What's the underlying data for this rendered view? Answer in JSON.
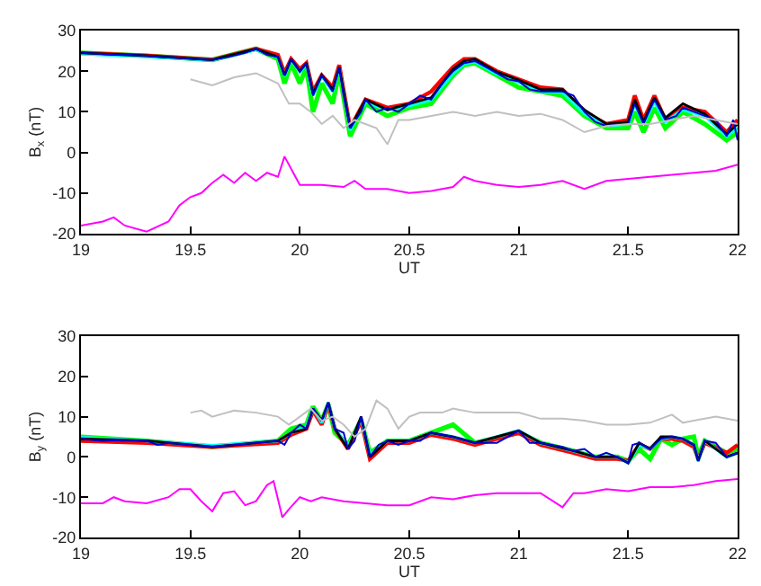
{
  "chart_data": [
    {
      "type": "line",
      "xlabel": "UT",
      "ylabel": "B$_{x}$ (nT)",
      "xlim": [
        19,
        22
      ],
      "xticks": [
        19,
        19.5,
        20,
        20.5,
        21,
        21.5,
        22
      ],
      "ylim": [
        -20,
        30
      ],
      "yticks": [
        -20,
        -10,
        0,
        10,
        20,
        30
      ],
      "grid": false,
      "marker": "none",
      "line_style": "solid",
      "series": [
        {
          "color": "#00ff00",
          "x": [
            19,
            19.3,
            19.6,
            19.8,
            19.9,
            19.93,
            19.96,
            20,
            20.03,
            20.06,
            20.1,
            20.15,
            20.18,
            20.23,
            20.3,
            20.4,
            20.5,
            20.6,
            20.7,
            20.75,
            20.8,
            20.9,
            21,
            21.1,
            21.2,
            21.3,
            21.4,
            21.5,
            21.53,
            21.57,
            21.62,
            21.67,
            21.75,
            21.85,
            21.95,
            22
          ],
          "values": [
            24.5,
            23.8,
            22.8,
            25.5,
            23,
            17,
            22,
            17,
            21,
            10,
            17,
            12,
            20,
            4,
            12,
            9,
            11,
            12,
            19,
            21.5,
            22,
            19,
            16,
            15,
            14,
            9,
            6,
            6,
            10,
            5,
            11,
            6,
            10,
            7,
            3,
            5
          ]
        },
        {
          "color": "#ff0000",
          "x": [
            19,
            19.3,
            19.6,
            19.8,
            19.9,
            19.93,
            19.96,
            20,
            20.03,
            20.06,
            20.1,
            20.15,
            20.18,
            20.23,
            20.3,
            20.4,
            20.5,
            20.6,
            20.7,
            20.75,
            20.8,
            20.9,
            21,
            21.1,
            21.2,
            21.3,
            21.4,
            21.5,
            21.53,
            21.57,
            21.62,
            21.67,
            21.75,
            21.85,
            21.95,
            22
          ],
          "values": [
            24.5,
            23.8,
            22.8,
            25.5,
            24,
            19.5,
            23,
            20.5,
            22,
            15,
            19,
            16,
            21.5,
            6,
            13,
            11,
            12,
            15,
            21,
            23,
            23,
            20,
            18,
            16,
            15.5,
            10,
            7,
            8,
            14,
            8,
            14,
            8,
            11,
            10,
            5,
            8
          ]
        },
        {
          "color": "#00ffff",
          "x": [
            19,
            19.3,
            19.6,
            19.8,
            19.9,
            19.93,
            19.96,
            20,
            20.03,
            20.06,
            20.1,
            20.15,
            20.18,
            20.23,
            20.3,
            20.4,
            20.5,
            20.6,
            20.7,
            20.75,
            20.8,
            20.9,
            21,
            21.1,
            21.2,
            21.3,
            21.4,
            21.5,
            21.53,
            21.57,
            21.62,
            21.67,
            21.75,
            21.85,
            21.95,
            22
          ],
          "values": [
            24.3,
            23.6,
            22.7,
            25.3,
            23.4,
            18.8,
            22.8,
            19.8,
            21.8,
            14,
            18.8,
            15,
            20.8,
            5.5,
            12.5,
            10.5,
            11.5,
            13,
            19.5,
            21.8,
            22.3,
            19.3,
            17.3,
            15,
            14.8,
            9.5,
            6.5,
            7,
            12,
            7,
            12.5,
            7.5,
            10.5,
            9,
            4,
            6
          ]
        },
        {
          "color": "#000000",
          "x": [
            19,
            19.3,
            19.6,
            19.8,
            19.9,
            19.93,
            19.96,
            20,
            20.03,
            20.06,
            20.1,
            20.15,
            20.18,
            20.23,
            20.3,
            20.4,
            20.5,
            20.6,
            20.7,
            20.75,
            20.8,
            20.9,
            21,
            21.1,
            21.2,
            21.3,
            21.4,
            21.5,
            21.53,
            21.57,
            21.62,
            21.67,
            21.75,
            21.85,
            21.95,
            22
          ],
          "values": [
            24.5,
            23.8,
            22.8,
            25.5,
            23.5,
            19,
            23,
            20,
            22,
            14.5,
            19,
            15.5,
            21,
            6,
            13,
            10.5,
            12,
            13.5,
            20.5,
            22.5,
            23,
            19.8,
            17.8,
            15.5,
            15.5,
            10.5,
            7,
            7.5,
            13,
            7.5,
            13.5,
            8.5,
            12,
            9.5,
            4.5,
            7
          ]
        },
        {
          "color": "#0000cc",
          "x": [
            19,
            19.075,
            19.15,
            19.225,
            19.3,
            19.375,
            19.45,
            19.525,
            19.6,
            19.675,
            19.75,
            19.8,
            19.85,
            19.9,
            19.93,
            19.96,
            20,
            20.03,
            20.06,
            20.1,
            20.15,
            20.18,
            20.2,
            20.23,
            20.28,
            20.3,
            20.35,
            20.4,
            20.45,
            20.5,
            20.55,
            20.6,
            20.65,
            20.7,
            20.75,
            20.8,
            20.85,
            20.9,
            20.95,
            21,
            21.05,
            21.1,
            21.2,
            21.25,
            21.3,
            21.35,
            21.4,
            21.45,
            21.5,
            21.53,
            21.57,
            21.62,
            21.67,
            21.72,
            21.75,
            21.8,
            21.85,
            21.9,
            21.95,
            21.98,
            22
          ],
          "values": [
            24.5,
            24.3,
            24,
            24,
            23.8,
            23.5,
            23.3,
            23,
            22.8,
            23.5,
            24.5,
            25.5,
            24,
            23.5,
            19,
            23,
            20,
            22,
            14,
            19,
            15,
            21,
            14,
            6,
            10,
            13,
            10,
            11,
            10,
            12,
            14,
            13,
            17,
            20,
            22,
            22.5,
            21,
            19.5,
            18,
            17.5,
            15.5,
            15,
            15,
            14,
            10,
            7.5,
            6.5,
            7,
            7,
            12,
            7,
            13,
            8,
            9,
            11,
            10,
            9,
            8,
            4,
            8,
            3
          ]
        },
        {
          "color": "#c0c0c0",
          "x": [
            19.5,
            19.6,
            19.7,
            19.8,
            19.9,
            19.95,
            20,
            20.05,
            20.1,
            20.15,
            20.2,
            20.25,
            20.3,
            20.35,
            20.4,
            20.45,
            20.5,
            20.6,
            20.7,
            20.8,
            20.9,
            21,
            21.1,
            21.2,
            21.3,
            21.4,
            21.5,
            21.6,
            21.7,
            21.8,
            21.9,
            22
          ],
          "values": [
            18,
            16.5,
            18.5,
            19.5,
            17,
            12,
            12,
            10,
            7,
            9,
            6,
            8,
            7,
            6,
            2,
            8,
            8,
            9,
            10,
            9,
            10,
            9,
            9.5,
            8,
            5,
            6.5,
            7,
            7,
            8,
            9,
            8,
            7
          ]
        },
        {
          "color": "#ff00ff",
          "x": [
            19,
            19.1,
            19.15,
            19.2,
            19.3,
            19.4,
            19.45,
            19.5,
            19.55,
            19.6,
            19.65,
            19.7,
            19.75,
            19.8,
            19.85,
            19.9,
            19.93,
            19.97,
            20,
            20.1,
            20.2,
            20.25,
            20.3,
            20.4,
            20.5,
            20.6,
            20.7,
            20.75,
            20.8,
            20.9,
            21,
            21.1,
            21.2,
            21.3,
            21.4,
            21.5,
            21.6,
            21.7,
            21.8,
            21.9,
            22
          ],
          "values": [
            -18,
            -17,
            -16,
            -18,
            -19.5,
            -17,
            -13,
            -11,
            -10,
            -7.5,
            -5.5,
            -7.5,
            -5,
            -7,
            -5,
            -6,
            -1,
            -5,
            -8,
            -8,
            -8.5,
            -7,
            -9,
            -9,
            -10,
            -9.5,
            -8.5,
            -6,
            -7,
            -8,
            -8.5,
            -8,
            -7,
            -9,
            -7,
            -6.5,
            -6,
            -5.5,
            -5,
            -4.5,
            -3
          ]
        }
      ]
    },
    {
      "type": "line",
      "xlabel": "UT",
      "ylabel": "B$_{y}$ (nT)",
      "xlim": [
        19,
        22
      ],
      "xticks": [
        19,
        19.5,
        20,
        20.5,
        21,
        21.5,
        22
      ],
      "ylim": [
        -20,
        30
      ],
      "yticks": [
        -20,
        -10,
        0,
        10,
        20,
        30
      ],
      "grid": false,
      "marker": "none",
      "line_style": "solid",
      "series": [
        {
          "color": "#00ff00",
          "x": [
            19,
            19.3,
            19.6,
            19.9,
            19.96,
            20.03,
            20.06,
            20.1,
            20.13,
            20.16,
            20.22,
            20.28,
            20.32,
            20.4,
            20.5,
            20.6,
            20.7,
            20.8,
            21,
            21.1,
            21.25,
            21.35,
            21.45,
            21.5,
            21.55,
            21.6,
            21.65,
            21.7,
            21.75,
            21.8,
            21.82,
            21.85,
            21.95,
            22
          ],
          "values": [
            5,
            4,
            2.5,
            4,
            7,
            8,
            12.5,
            9,
            13,
            6,
            3,
            9,
            1,
            4,
            4,
            6,
            8,
            3.5,
            6,
            3.5,
            1.5,
            0,
            0,
            -1,
            2,
            -0.5,
            4.5,
            3,
            4.5,
            5,
            0,
            4,
            1,
            2
          ]
        },
        {
          "color": "#ff0000",
          "x": [
            19,
            19.3,
            19.6,
            19.9,
            19.96,
            20.03,
            20.06,
            20.1,
            20.13,
            20.16,
            20.22,
            20.28,
            20.32,
            20.4,
            20.5,
            20.6,
            20.7,
            20.8,
            21,
            21.1,
            21.25,
            21.35,
            21.45,
            21.5,
            21.55,
            21.6,
            21.65,
            21.7,
            21.75,
            21.8,
            21.82,
            21.85,
            21.95,
            22
          ],
          "values": [
            4,
            3.5,
            2.5,
            3.5,
            5.5,
            7,
            11.5,
            8,
            13,
            7,
            2,
            9,
            -0.5,
            3.5,
            3.5,
            5.5,
            4.5,
            3,
            6,
            3,
            1,
            -0.5,
            -0.5,
            -1,
            3,
            2,
            4.5,
            4.5,
            4,
            2.5,
            -0.5,
            3.5,
            1,
            3
          ]
        },
        {
          "color": "#00ffff",
          "x": [
            19,
            19.3,
            19.6,
            19.9,
            19.96,
            20.03,
            20.06,
            20.1,
            20.13,
            20.16,
            20.22,
            20.28,
            20.32,
            20.4,
            20.5,
            20.6,
            20.7,
            20.8,
            21,
            21.1,
            21.25,
            21.35,
            21.45,
            21.5,
            21.55,
            21.6,
            21.65,
            21.7,
            21.75,
            21.8,
            21.82,
            21.85,
            21.95,
            22
          ],
          "values": [
            4.8,
            4,
            2.8,
            4,
            6,
            7.5,
            12,
            8.5,
            13.5,
            7,
            2.5,
            9.5,
            0.5,
            4,
            4,
            6,
            5,
            3.5,
            6.5,
            3.5,
            1.5,
            0,
            0,
            -1.5,
            3,
            2,
            4.5,
            5,
            4.5,
            3,
            -1,
            4,
            0,
            1
          ]
        },
        {
          "color": "#000000",
          "x": [
            19,
            19.3,
            19.6,
            19.9,
            19.96,
            20.03,
            20.06,
            20.1,
            20.13,
            20.16,
            20.22,
            20.28,
            20.32,
            20.4,
            20.5,
            20.6,
            20.7,
            20.8,
            21,
            21.1,
            21.25,
            21.35,
            21.45,
            21.5,
            21.55,
            21.6,
            21.65,
            21.7,
            21.75,
            21.8,
            21.82,
            21.85,
            21.95,
            22
          ],
          "values": [
            4.5,
            4,
            2.5,
            4,
            6,
            7,
            12,
            9,
            13.5,
            7,
            2,
            10,
            0,
            4,
            4,
            6,
            5,
            3.5,
            6.5,
            3.5,
            1.5,
            0,
            0,
            -1.5,
            3.5,
            2,
            5,
            5,
            4.5,
            3,
            -1,
            4,
            0,
            1
          ]
        },
        {
          "color": "#0000cc",
          "x": [
            19,
            19.1,
            19.2,
            19.3,
            19.35,
            19.4,
            19.5,
            19.6,
            19.7,
            19.8,
            19.9,
            19.93,
            19.96,
            20,
            20.03,
            20.06,
            20.1,
            20.13,
            20.16,
            20.2,
            20.22,
            20.25,
            20.28,
            20.32,
            20.36,
            20.4,
            20.45,
            20.5,
            20.55,
            20.6,
            20.65,
            20.7,
            20.8,
            20.9,
            21,
            21.05,
            21.1,
            21.2,
            21.25,
            21.3,
            21.35,
            21.4,
            21.45,
            21.5,
            21.52,
            21.55,
            21.6,
            21.65,
            21.7,
            21.75,
            21.8,
            21.82,
            21.85,
            21.9,
            21.95,
            22
          ],
          "values": [
            4.5,
            4,
            4.2,
            4,
            3,
            3.5,
            3,
            2.5,
            3,
            3.5,
            4,
            3,
            6,
            8,
            7,
            12,
            9,
            13.5,
            7,
            6,
            2,
            4,
            10,
            0,
            3,
            4,
            3,
            4,
            4,
            6,
            5.5,
            5,
            3.5,
            3.5,
            6.5,
            3.5,
            3.5,
            2.5,
            1.5,
            2,
            0,
            1,
            0,
            -1.5,
            3,
            3.5,
            2,
            4.5,
            5,
            4.5,
            3,
            -1,
            4,
            3.5,
            0,
            1
          ]
        },
        {
          "color": "#c0c0c0",
          "x": [
            19.5,
            19.55,
            19.6,
            19.7,
            19.8,
            19.9,
            19.95,
            20,
            20.05,
            20.1,
            20.15,
            20.2,
            20.25,
            20.3,
            20.35,
            20.4,
            20.45,
            20.5,
            20.55,
            20.65,
            20.7,
            20.8,
            20.9,
            21,
            21.1,
            21.2,
            21.3,
            21.4,
            21.5,
            21.6,
            21.7,
            21.75,
            21.8,
            21.9,
            22
          ],
          "values": [
            11,
            11.5,
            10,
            11.5,
            11,
            10,
            8,
            10,
            12,
            9,
            10,
            8,
            5,
            7,
            14,
            12,
            7,
            10,
            11,
            11,
            12,
            11,
            11,
            11,
            9.5,
            9.5,
            9,
            8,
            8,
            8.5,
            10.5,
            8.5,
            9,
            10,
            9
          ]
        },
        {
          "color": "#ff00ff",
          "x": [
            19,
            19.1,
            19.15,
            19.2,
            19.3,
            19.4,
            19.45,
            19.5,
            19.55,
            19.6,
            19.65,
            19.7,
            19.75,
            19.8,
            19.85,
            19.88,
            19.92,
            19.95,
            20,
            20.05,
            20.1,
            20.2,
            20.3,
            20.4,
            20.5,
            20.6,
            20.7,
            20.8,
            20.9,
            21,
            21.1,
            21.2,
            21.25,
            21.3,
            21.4,
            21.5,
            21.6,
            21.7,
            21.8,
            21.9,
            22
          ],
          "values": [
            -11.5,
            -11.5,
            -10,
            -11,
            -11.5,
            -10,
            -8,
            -8,
            -11,
            -13.5,
            -9,
            -8.5,
            -12,
            -11,
            -7,
            -6,
            -15,
            -13,
            -10,
            -11,
            -10,
            -11,
            -11.5,
            -12,
            -12,
            -10,
            -10.5,
            -9.5,
            -9,
            -9,
            -9,
            -12.5,
            -9,
            -9,
            -8,
            -8.5,
            -7.5,
            -7.5,
            -7,
            -6,
            -5.5
          ]
        }
      ]
    }
  ]
}
